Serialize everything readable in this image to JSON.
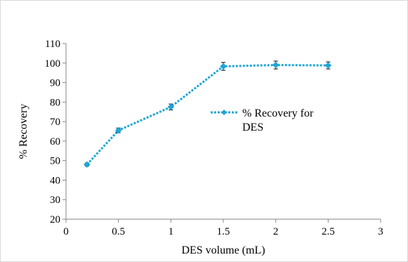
{
  "chart_data": {
    "type": "line",
    "title": "",
    "xlabel": "DES volume (mL)",
    "ylabel": "% Recovery",
    "xlim": [
      0,
      3
    ],
    "ylim": [
      20,
      110
    ],
    "xticks": [
      "0",
      "0.5",
      "1",
      "1.5",
      "2",
      "2.5",
      "3"
    ],
    "yticks": [
      "20",
      "30",
      "40",
      "50",
      "60",
      "70",
      "80",
      "90",
      "100",
      "110"
    ],
    "grid": false,
    "legend_placement": "center-right",
    "series": [
      {
        "name": "% Recovery for DES",
        "color": "#1fa5d6",
        "line_style": "dotted",
        "marker": "diamond",
        "x": [
          0.2,
          0.5,
          1,
          1.5,
          2,
          2.5
        ],
        "y": [
          48,
          65.5,
          77.5,
          98.3,
          99,
          98.8
        ],
        "error": [
          0.8,
          1.2,
          1.5,
          2,
          2,
          1.8
        ]
      }
    ]
  }
}
